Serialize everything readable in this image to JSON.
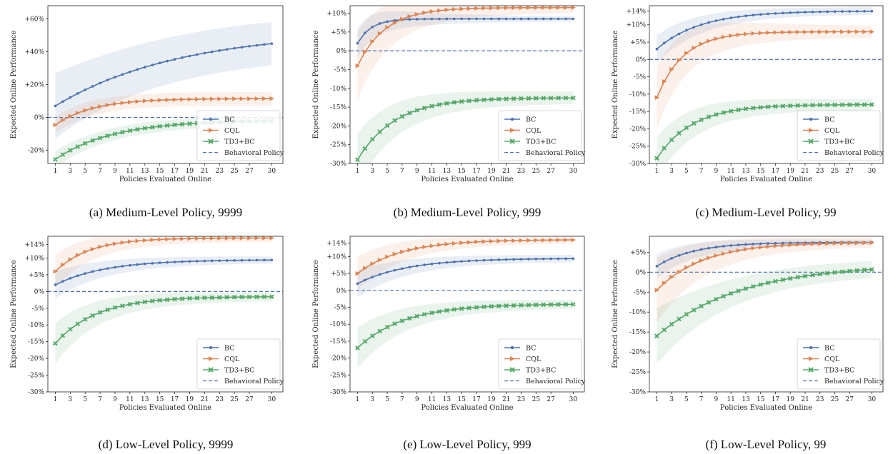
{
  "colors": {
    "BC": "#4c72b0",
    "CQL": "#dd8452",
    "TD3+BC": "#55a868",
    "Behavioral Policy": "#4c72b0"
  },
  "chart_data": [
    {
      "type": "line",
      "caption": "(a) Medium-Level Policy, 9999",
      "xlabel": "Policies Evaluated Online",
      "ylabel": "Expected Online Performance",
      "x_ticks": [
        1,
        3,
        5,
        7,
        9,
        11,
        13,
        15,
        17,
        19,
        21,
        23,
        25,
        27,
        30
      ],
      "y_ticks": [
        -20,
        0,
        20,
        40,
        60
      ],
      "y_tick_labels": [
        "-20%",
        "0%",
        "+20%",
        "+40%",
        "+60%"
      ],
      "ylim": [
        -28,
        68
      ],
      "xlim": [
        0,
        31.5
      ],
      "legend": "lower-right",
      "baseline": 0,
      "series": [
        {
          "name": "BC",
          "marker": "dot",
          "start": 7,
          "end": 53,
          "k": 0.06,
          "band_start": 20,
          "band_end": 13
        },
        {
          "name": "CQL",
          "marker": "triangle",
          "start": -4.5,
          "end": 11.5,
          "k": 0.2,
          "band_start": 5,
          "band_end": 4
        },
        {
          "name": "TD3+BC",
          "marker": "x",
          "start": -25.5,
          "end": -1.5,
          "k": 0.13,
          "band_start": 5,
          "band_end": 3
        }
      ],
      "baseline_name": "Behavioral Policy"
    },
    {
      "type": "line",
      "caption": "(b) Medium-Level Policy, 999",
      "xlabel": "Policies Evaluated Online",
      "ylabel": "Expected Online Performance",
      "x_ticks": [
        1,
        3,
        5,
        7,
        9,
        11,
        13,
        15,
        17,
        19,
        21,
        23,
        25,
        27,
        30
      ],
      "y_ticks": [
        -30,
        -25,
        -20,
        -15,
        -10,
        -5,
        0,
        5,
        10
      ],
      "y_tick_labels": [
        "-30%",
        "-25%",
        "-20%",
        "-15%",
        "-10%",
        "-5%",
        "0%",
        "+5%",
        "+10%"
      ],
      "ylim": [
        -30,
        12
      ],
      "xlim": [
        0,
        31.5
      ],
      "legend": "lower-right",
      "baseline": 0,
      "series": [
        {
          "name": "BC",
          "marker": "dot",
          "start": 2,
          "end": 8.5,
          "k": 0.55,
          "band_start": 4,
          "band_end": 0.6
        },
        {
          "name": "CQL",
          "marker": "triangle",
          "start": -4,
          "end": 11.5,
          "k": 0.27,
          "band_start": 9,
          "band_end": 1.2
        },
        {
          "name": "TD3+BC",
          "marker": "x",
          "start": -29,
          "end": -12.5,
          "k": 0.2,
          "band_start": 7,
          "band_end": 1.5
        }
      ],
      "baseline_name": "Behavioral Policy"
    },
    {
      "type": "line",
      "caption": "(c) Medium-Level Policy, 99",
      "xlabel": "Policies Evaluated Online",
      "ylabel": "Expected Online Performance",
      "x_ticks": [
        1,
        3,
        5,
        7,
        9,
        11,
        13,
        15,
        17,
        19,
        21,
        23,
        25,
        27,
        30
      ],
      "y_ticks": [
        -30,
        -25,
        -20,
        -15,
        -10,
        -5,
        0,
        5,
        10,
        14
      ],
      "y_tick_labels": [
        "-30%",
        "-25%",
        "-20%",
        "-15%",
        "-10%",
        "-5%",
        "0%",
        "+5%",
        "+10%",
        "+14%"
      ],
      "ylim": [
        -30,
        15.5
      ],
      "xlim": [
        0,
        31.5
      ],
      "legend": "lower-right",
      "baseline": 0,
      "series": [
        {
          "name": "BC",
          "marker": "dot",
          "start": 3,
          "end": 14,
          "k": 0.17,
          "band_start": 4,
          "band_end": 1
        },
        {
          "name": "CQL",
          "marker": "triangle",
          "start": -11,
          "end": 8,
          "k": 0.28,
          "band_start": 9,
          "band_end": 1.5
        },
        {
          "name": "TD3+BC",
          "marker": "x",
          "start": -28.5,
          "end": -13,
          "k": 0.21,
          "band_start": 6,
          "band_end": 1.5
        }
      ],
      "baseline_name": "Behavioral Policy"
    },
    {
      "type": "line",
      "caption": "(d) Low-Level Policy, 9999",
      "xlabel": "Policies Evaluated Online",
      "ylabel": "Expected Online Performance",
      "x_ticks": [
        1,
        3,
        5,
        7,
        9,
        11,
        13,
        15,
        17,
        19,
        21,
        23,
        25,
        27,
        30
      ],
      "y_ticks": [
        -30,
        -25,
        -20,
        -15,
        -10,
        -5,
        0,
        5,
        10,
        14
      ],
      "y_tick_labels": [
        "-30%",
        "-25%",
        "-20%",
        "-15%",
        "-10%",
        "-5%",
        "0%",
        "+5%",
        "+10%",
        "+14%"
      ],
      "ylim": [
        -30,
        16.5
      ],
      "xlim": [
        0,
        31.5
      ],
      "legend": "lower-right",
      "baseline": 0,
      "series": [
        {
          "name": "BC",
          "marker": "dot",
          "start": 2,
          "end": 9.5,
          "k": 0.15,
          "band_start": 4,
          "band_end": 1
        },
        {
          "name": "CQL",
          "marker": "triangle",
          "start": 6,
          "end": 16,
          "k": 0.22,
          "band_start": 5,
          "band_end": 1
        },
        {
          "name": "TD3+BC",
          "marker": "x",
          "start": -15.5,
          "end": -1.5,
          "k": 0.18,
          "band_start": 6,
          "band_end": 1.2
        }
      ],
      "baseline_name": "Behavioral Policy"
    },
    {
      "type": "line",
      "caption": "(e) Low-Level Policy, 999",
      "xlabel": "Policies Evaluated Online",
      "ylabel": "Expected Online Performance",
      "x_ticks": [
        1,
        3,
        5,
        7,
        9,
        11,
        13,
        15,
        17,
        19,
        21,
        23,
        25,
        27,
        30
      ],
      "y_ticks": [
        -30,
        -25,
        -20,
        -15,
        -10,
        -5,
        0,
        5,
        10,
        14
      ],
      "y_tick_labels": [
        "-30%",
        "-25%",
        "-20%",
        "-15%",
        "-10%",
        "-5%",
        "0%",
        "+5%",
        "+10%",
        "+14%"
      ],
      "ylim": [
        -30,
        16
      ],
      "xlim": [
        0,
        31.5
      ],
      "legend": "lower-right",
      "baseline": 0,
      "series": [
        {
          "name": "BC",
          "marker": "dot",
          "start": 2,
          "end": 9.5,
          "k": 0.15,
          "band_start": 4,
          "band_end": 1
        },
        {
          "name": "CQL",
          "marker": "triangle",
          "start": 5,
          "end": 15,
          "k": 0.17,
          "band_start": 5,
          "band_end": 1
        },
        {
          "name": "TD3+BC",
          "marker": "x",
          "start": -17,
          "end": -4,
          "k": 0.16,
          "band_start": 6,
          "band_end": 1.2
        }
      ],
      "baseline_name": "Behavioral Policy"
    },
    {
      "type": "line",
      "caption": "(f) Low-Level Policy, 99",
      "xlabel": "Policies Evaluated Online",
      "ylabel": "Expected Online Performance",
      "x_ticks": [
        1,
        3,
        5,
        7,
        9,
        11,
        13,
        15,
        17,
        19,
        21,
        23,
        25,
        27,
        30
      ],
      "y_ticks": [
        -30,
        -25,
        -20,
        -15,
        -10,
        -5,
        0,
        5
      ],
      "y_tick_labels": [
        "-30%",
        "-25%",
        "-20%",
        "-15%",
        "-10%",
        "-5%",
        "0%",
        "+5%"
      ],
      "ylim": [
        -30,
        9
      ],
      "xlim": [
        0,
        31.5
      ],
      "legend": "lower-right",
      "baseline": 0,
      "series": [
        {
          "name": "BC",
          "marker": "dot",
          "start": 1.5,
          "end": 7.5,
          "k": 0.2,
          "band_start": 3,
          "band_end": 0.6
        },
        {
          "name": "CQL",
          "marker": "triangle",
          "start": -4.5,
          "end": 7.5,
          "k": 0.16,
          "band_start": 8,
          "band_end": 1
        },
        {
          "name": "TD3+BC",
          "marker": "x",
          "start": -16,
          "end": 2,
          "k": 0.09,
          "band_start": 7,
          "band_end": 2
        }
      ],
      "baseline_name": "Behavioral Policy"
    }
  ]
}
